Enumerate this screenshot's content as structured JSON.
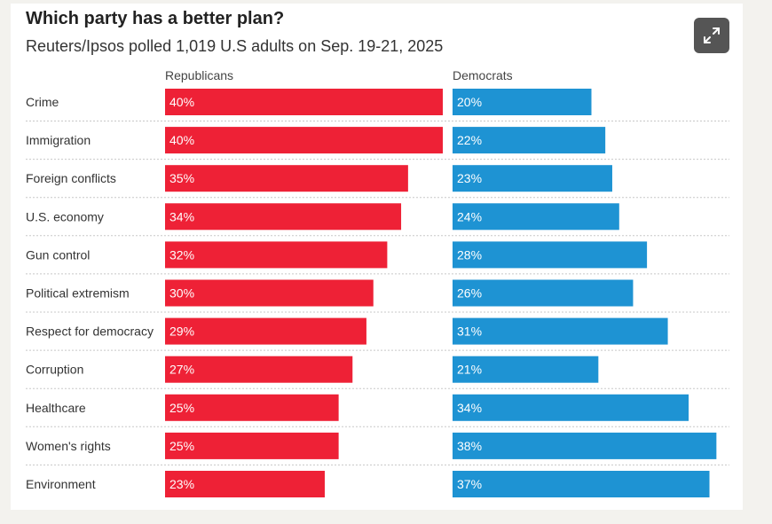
{
  "header": {
    "title": "Which party has a better plan?",
    "subtitle": "Reuters/Ipsos polled 1,019 U.S adults on Sep. 19-21, 2025"
  },
  "toolbar": {
    "expand_icon": "expand-arrows-icon"
  },
  "colors": {
    "republicans": "#ee2136",
    "democrats": "#1e93d3",
    "divider": "#c8c8c8",
    "label": "#333333"
  },
  "chart_data": {
    "type": "bar",
    "orientation": "horizontal",
    "categories": [
      "Crime",
      "Immigration",
      "Foreign conflicts",
      "U.S. economy",
      "Gun control",
      "Political extremism",
      "Respect for democracy",
      "Corruption",
      "Healthcare",
      "Women's rights",
      "Environment"
    ],
    "series": [
      {
        "name": "Republicans",
        "values": [
          40,
          40,
          35,
          34,
          32,
          30,
          29,
          27,
          25,
          25,
          23
        ],
        "labels": [
          "40%",
          "40%",
          "35%",
          "34%",
          "32%",
          "30%",
          "29%",
          "27%",
          "25%",
          "25%",
          "23%"
        ]
      },
      {
        "name": "Democrats",
        "values": [
          20,
          22,
          23,
          24,
          28,
          26,
          31,
          21,
          34,
          38,
          37
        ],
        "labels": [
          "20%",
          "22%",
          "23%",
          "24%",
          "28%",
          "26%",
          "31%",
          "21%",
          "34%",
          "38%",
          "37%"
        ]
      }
    ],
    "value_unit": "%",
    "xlim": [
      0,
      40
    ],
    "grid": false,
    "legend": "column headers above bars"
  }
}
